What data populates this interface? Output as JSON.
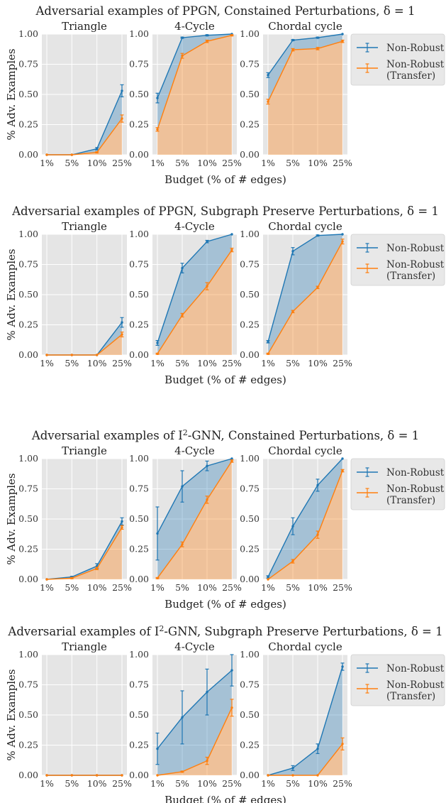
{
  "chart_data": [
    {
      "type": "line",
      "title": "Adversarial examples of PPGN, Constained Perturbations, δ = 1",
      "xlabel": "Budget (% of # edges)",
      "ylabel": "% Adv. Examples",
      "legend": "right",
      "legend_entries": [
        "Non-Robust",
        "Non-Robust\n(Transfer)"
      ],
      "panels": [
        {
          "subtitle": "Triangle",
          "categories": [
            "1%",
            "5%",
            "10%",
            "25%"
          ],
          "ylim": [
            0,
            1
          ],
          "series": [
            {
              "name": "Non-Robust",
              "color": "#1f77b4",
              "values": [
                0.0,
                0.0,
                0.05,
                0.53
              ],
              "errors": [
                0.0,
                0.0,
                0.01,
                0.05
              ]
            },
            {
              "name": "Non-Robust\n(Transfer)",
              "color": "#ff7f0e",
              "values": [
                0.0,
                0.0,
                0.02,
                0.3
              ],
              "errors": [
                0.0,
                0.0,
                0.005,
                0.03
              ]
            }
          ]
        },
        {
          "subtitle": "4-Cycle",
          "categories": [
            "1%",
            "5%",
            "10%",
            "25%"
          ],
          "ylim": [
            0,
            1
          ],
          "series": [
            {
              "name": "Non-Robust",
              "color": "#1f77b4",
              "values": [
                0.47,
                0.97,
                0.99,
                1.0
              ],
              "errors": [
                0.04,
                0.005,
                0.005,
                0.0
              ]
            },
            {
              "name": "Non-Robust\n(Transfer)",
              "color": "#ff7f0e",
              "values": [
                0.21,
                0.82,
                0.94,
                0.99
              ],
              "errors": [
                0.015,
                0.02,
                0.01,
                0.005
              ]
            }
          ]
        },
        {
          "subtitle": "Chordal cycle",
          "categories": [
            "1%",
            "5%",
            "10%",
            "25%"
          ],
          "ylim": [
            0,
            1
          ],
          "series": [
            {
              "name": "Non-Robust",
              "color": "#1f77b4",
              "values": [
                0.66,
                0.95,
                0.97,
                1.0
              ],
              "errors": [
                0.02,
                0.005,
                0.005,
                0.0
              ]
            },
            {
              "name": "Non-Robust\n(Transfer)",
              "color": "#ff7f0e",
              "values": [
                0.44,
                0.87,
                0.88,
                0.94
              ],
              "errors": [
                0.02,
                0.01,
                0.01,
                0.01
              ]
            }
          ]
        }
      ]
    },
    {
      "type": "line",
      "title": "Adversarial examples of PPGN, Subgraph Preserve Perturbations, δ = 1",
      "xlabel": "Budget (% of # edges)",
      "ylabel": "% Adv. Examples",
      "legend": "right",
      "legend_entries": [
        "Non-Robust",
        "Non-Robust\n(Transfer)"
      ],
      "panels": [
        {
          "subtitle": "Triangle",
          "categories": [
            "1%",
            "5%",
            "10%",
            "25%"
          ],
          "ylim": [
            0,
            1
          ],
          "series": [
            {
              "name": "Non-Robust",
              "color": "#1f77b4",
              "values": [
                0.0,
                0.0,
                0.0,
                0.27
              ],
              "errors": [
                0.0,
                0.0,
                0.0,
                0.04
              ]
            },
            {
              "name": "Non-Robust\n(Transfer)",
              "color": "#ff7f0e",
              "values": [
                0.0,
                0.0,
                0.0,
                0.17
              ],
              "errors": [
                0.0,
                0.0,
                0.0,
                0.02
              ]
            }
          ]
        },
        {
          "subtitle": "4-Cycle",
          "categories": [
            "1%",
            "5%",
            "10%",
            "25%"
          ],
          "ylim": [
            0,
            1
          ],
          "series": [
            {
              "name": "Non-Robust",
              "color": "#1f77b4",
              "values": [
                0.1,
                0.72,
                0.94,
                1.0
              ],
              "errors": [
                0.02,
                0.04,
                0.01,
                0.0
              ]
            },
            {
              "name": "Non-Robust\n(Transfer)",
              "color": "#ff7f0e",
              "values": [
                0.01,
                0.33,
                0.57,
                0.87
              ],
              "errors": [
                0.005,
                0.015,
                0.03,
                0.015
              ]
            }
          ]
        },
        {
          "subtitle": "Chordal cycle",
          "categories": [
            "1%",
            "5%",
            "10%",
            "25%"
          ],
          "ylim": [
            0,
            1
          ],
          "series": [
            {
              "name": "Non-Robust",
              "color": "#1f77b4",
              "values": [
                0.11,
                0.86,
                0.99,
                1.0
              ],
              "errors": [
                0.01,
                0.03,
                0.005,
                0.0
              ]
            },
            {
              "name": "Non-Robust\n(Transfer)",
              "color": "#ff7f0e",
              "values": [
                0.01,
                0.36,
                0.56,
                0.94
              ],
              "errors": [
                0.005,
                0.01,
                0.01,
                0.02
              ]
            }
          ]
        }
      ]
    },
    {
      "type": "line",
      "title": "Adversarial examples of I²-GNN, Constained Perturbations, δ = 1",
      "xlabel": "Budget (% of # edges)",
      "ylabel": "% Adv. Examples",
      "legend": "right",
      "legend_entries": [
        "Non-Robust",
        "Non-Robust\n(Transfer)"
      ],
      "panels": [
        {
          "subtitle": "Triangle",
          "categories": [
            "1%",
            "5%",
            "10%",
            "25%"
          ],
          "ylim": [
            0,
            1
          ],
          "series": [
            {
              "name": "Non-Robust",
              "color": "#1f77b4",
              "values": [
                0.0,
                0.02,
                0.11,
                0.48
              ],
              "errors": [
                0.0,
                0.005,
                0.02,
                0.03
              ]
            },
            {
              "name": "Non-Robust\n(Transfer)",
              "color": "#ff7f0e",
              "values": [
                0.0,
                0.01,
                0.09,
                0.43
              ],
              "errors": [
                0.0,
                0.005,
                0.01,
                0.015
              ]
            }
          ]
        },
        {
          "subtitle": "4-Cycle",
          "categories": [
            "1%",
            "5%",
            "10%",
            "25%"
          ],
          "ylim": [
            0,
            1
          ],
          "series": [
            {
              "name": "Non-Robust",
              "color": "#1f77b4",
              "values": [
                0.38,
                0.77,
                0.94,
                1.0
              ],
              "errors": [
                0.22,
                0.13,
                0.04,
                0.0
              ]
            },
            {
              "name": "Non-Robust\n(Transfer)",
              "color": "#ff7f0e",
              "values": [
                0.01,
                0.29,
                0.66,
                0.98
              ],
              "errors": [
                0.005,
                0.02,
                0.03,
                0.01
              ]
            }
          ]
        },
        {
          "subtitle": "Chordal cycle",
          "categories": [
            "1%",
            "5%",
            "10%",
            "25%"
          ],
          "ylim": [
            0,
            1
          ],
          "series": [
            {
              "name": "Non-Robust",
              "color": "#1f77b4",
              "values": [
                0.02,
                0.44,
                0.78,
                1.0
              ],
              "errors": [
                0.01,
                0.07,
                0.05,
                0.0
              ]
            },
            {
              "name": "Non-Robust\n(Transfer)",
              "color": "#ff7f0e",
              "values": [
                0.0,
                0.15,
                0.37,
                0.9
              ],
              "errors": [
                0.0,
                0.015,
                0.03,
                0.01
              ]
            }
          ]
        }
      ]
    },
    {
      "type": "line",
      "title": "Adversarial examples of I²-GNN, Subgraph Preserve Perturbations, δ = 1",
      "xlabel": "Budget (% of # edges)",
      "ylabel": "% Adv. Examples",
      "legend": "right",
      "legend_entries": [
        "Non-Robust",
        "Non-Robust\n(Transfer)"
      ],
      "panels": [
        {
          "subtitle": "Triangle",
          "categories": [
            "1%",
            "5%",
            "10%",
            "25%"
          ],
          "ylim": [
            0,
            1
          ],
          "series": [
            {
              "name": "Non-Robust",
              "color": "#1f77b4",
              "values": [
                0.0,
                0.0,
                0.0,
                0.0
              ],
              "errors": [
                0.0,
                0.0,
                0.0,
                0.0
              ]
            },
            {
              "name": "Non-Robust\n(Transfer)",
              "color": "#ff7f0e",
              "values": [
                0.0,
                0.0,
                0.0,
                0.0
              ],
              "errors": [
                0.0,
                0.0,
                0.0,
                0.0
              ]
            }
          ]
        },
        {
          "subtitle": "4-Cycle",
          "categories": [
            "1%",
            "5%",
            "10%",
            "25%"
          ],
          "ylim": [
            0,
            1
          ],
          "series": [
            {
              "name": "Non-Robust",
              "color": "#1f77b4",
              "values": [
                0.22,
                0.48,
                0.69,
                0.87
              ],
              "errors": [
                0.13,
                0.22,
                0.19,
                0.13
              ]
            },
            {
              "name": "Non-Robust\n(Transfer)",
              "color": "#ff7f0e",
              "values": [
                0.0,
                0.03,
                0.12,
                0.56
              ],
              "errors": [
                0.0,
                0.005,
                0.03,
                0.07
              ]
            }
          ]
        },
        {
          "subtitle": "Chordal cycle",
          "categories": [
            "1%",
            "5%",
            "10%",
            "25%"
          ],
          "ylim": [
            0,
            1
          ],
          "series": [
            {
              "name": "Non-Robust",
              "color": "#1f77b4",
              "values": [
                0.0,
                0.06,
                0.22,
                0.9
              ],
              "errors": [
                0.0,
                0.02,
                0.04,
                0.03
              ]
            },
            {
              "name": "Non-Robust\n(Transfer)",
              "color": "#ff7f0e",
              "values": [
                0.0,
                0.0,
                0.0,
                0.26
              ],
              "errors": [
                0.0,
                0.0,
                0.0,
                0.05
              ]
            }
          ]
        }
      ]
    }
  ],
  "yticks": [
    "0.00",
    "0.25",
    "0.50",
    "0.75",
    "1.00"
  ]
}
